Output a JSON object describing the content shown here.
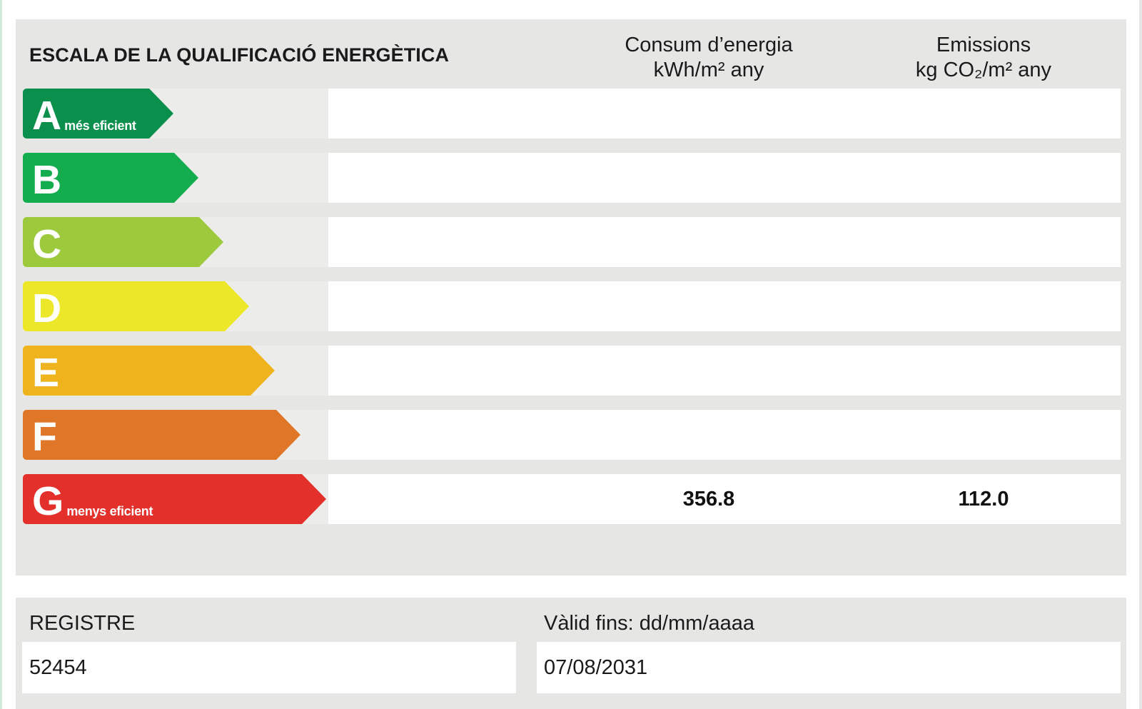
{
  "title": "ESCALA DE LA QUALIFICACIÓ ENERGÈTICA",
  "columns": {
    "consum": {
      "line1": "Consum d’energia",
      "line2": "kWh/m² any"
    },
    "emissions": {
      "line1": "Emissions",
      "line2": "kg CO₂/m² any"
    }
  },
  "classes": [
    {
      "letter": "A",
      "label": "més eficient",
      "color": "#0a8f4c"
    },
    {
      "letter": "B",
      "label": "",
      "color": "#13ad4f"
    },
    {
      "letter": "C",
      "label": "",
      "color": "#9dc93c"
    },
    {
      "letter": "D",
      "label": "",
      "color": "#ece829"
    },
    {
      "letter": "E",
      "label": "",
      "color": "#efb41d"
    },
    {
      "letter": "F",
      "label": "",
      "color": "#e07728"
    },
    {
      "letter": "G",
      "label": "menys eficient",
      "color": "#e3302a"
    }
  ],
  "rating": {
    "class": "G",
    "consum": "356.8",
    "emissions": "112.0"
  },
  "registre": {
    "label": "REGISTRE",
    "value": "52454"
  },
  "valid": {
    "label": "Vàlid fins: dd/mm/aaaa",
    "value": "07/08/2031"
  }
}
